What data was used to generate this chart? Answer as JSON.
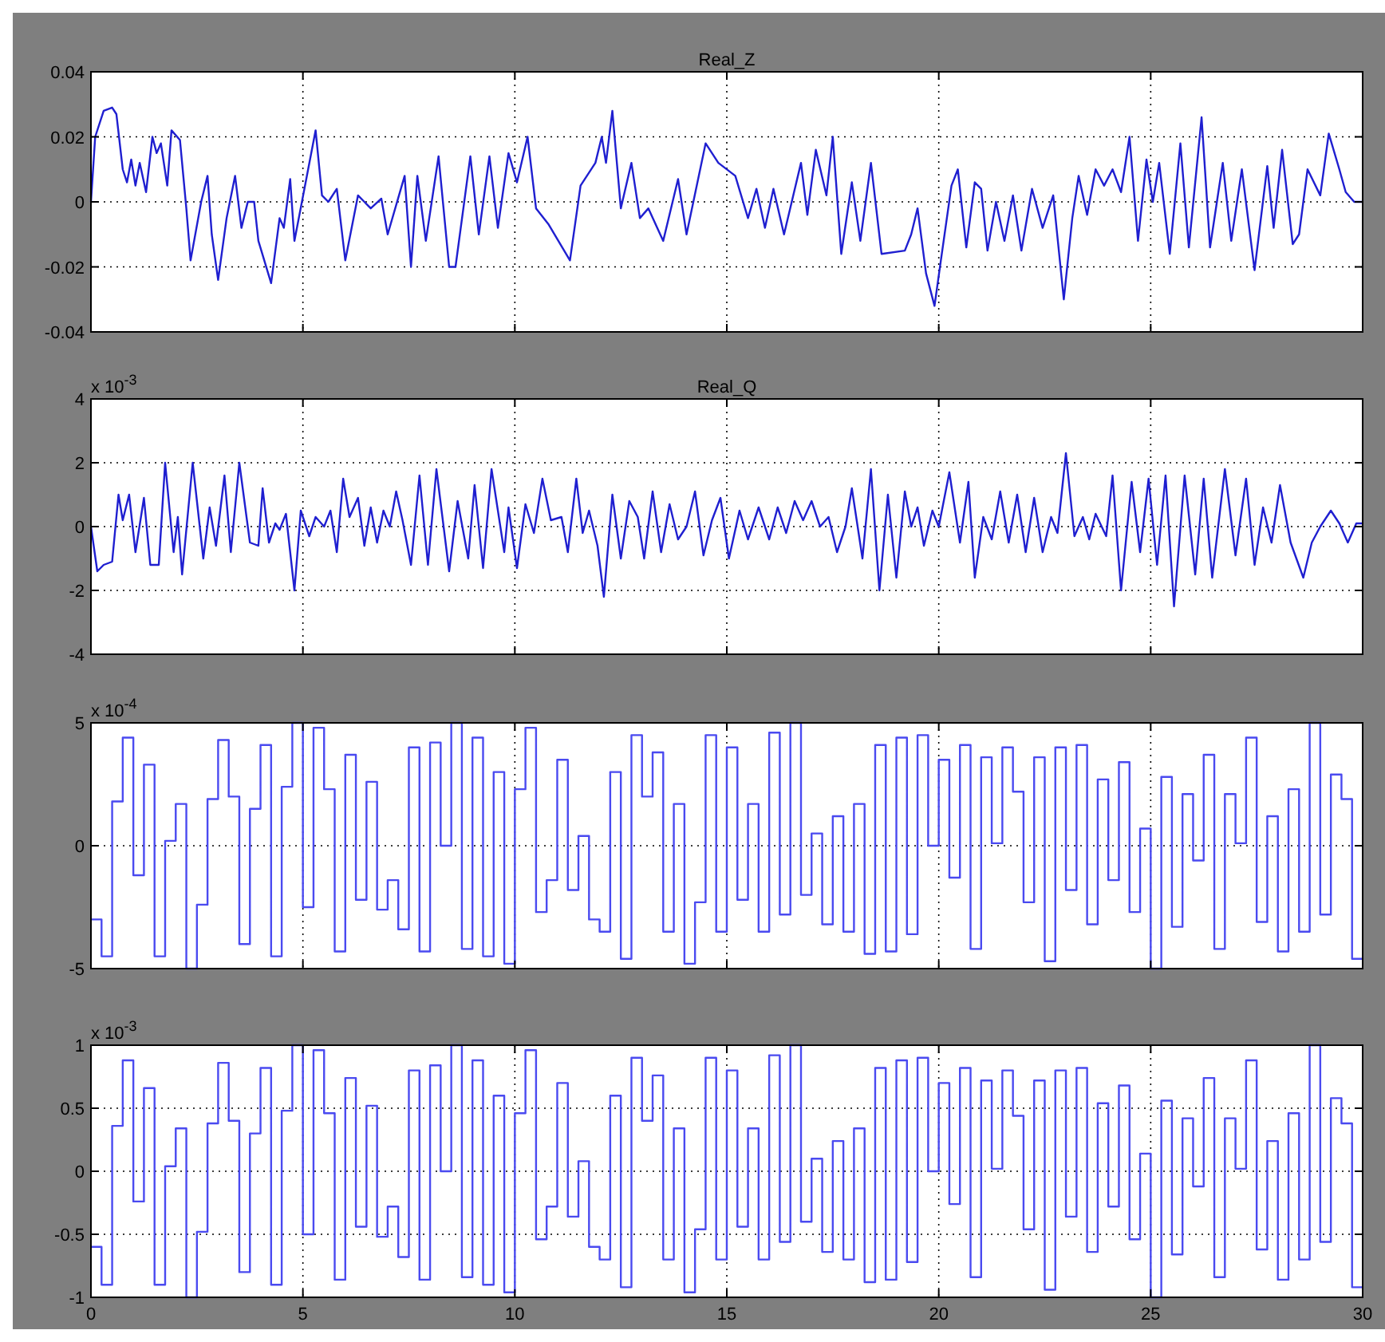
{
  "chart_data": [
    {
      "type": "line",
      "title": "Real_Z",
      "color": "#1f1fd0",
      "xlim": [
        0,
        30
      ],
      "xticks": [
        0,
        5,
        10,
        15,
        20,
        25,
        30
      ],
      "ylim": [
        -0.04,
        0.04
      ],
      "yticks": [
        -0.04,
        -0.02,
        0,
        0.02,
        0.04
      ],
      "grid": true,
      "tick_labels": "y",
      "x": [
        0,
        0.1,
        0.3,
        0.5,
        0.6,
        0.75,
        0.85,
        0.95,
        1.05,
        1.15,
        1.3,
        1.45,
        1.55,
        1.65,
        1.8,
        1.9,
        2.1,
        2.25,
        2.35,
        2.6,
        2.75,
        2.85,
        3.0,
        3.2,
        3.4,
        3.55,
        3.7,
        3.85,
        3.95,
        4.25,
        4.45,
        4.55,
        4.7,
        4.8,
        5.3,
        5.45,
        5.6,
        5.8,
        6.0,
        6.3,
        6.45,
        6.6,
        6.85,
        7.0,
        7.4,
        7.55,
        7.7,
        7.9,
        8.2,
        8.45,
        8.6,
        8.95,
        9.15,
        9.4,
        9.6,
        9.85,
        10.05,
        10.3,
        10.5,
        10.8,
        11.3,
        11.55,
        11.9,
        12.05,
        12.15,
        12.3,
        12.5,
        12.75,
        12.95,
        13.15,
        13.5,
        13.85,
        14.05,
        14.5,
        14.8,
        15.2,
        15.5,
        15.7,
        15.9,
        16.1,
        16.35,
        16.75,
        16.9,
        17.1,
        17.35,
        17.5,
        17.7,
        17.95,
        18.15,
        18.4,
        18.65,
        19.2,
        19.35,
        19.5,
        19.7,
        19.9,
        20.05,
        20.3,
        20.45,
        20.65,
        20.85,
        21.0,
        21.15,
        21.35,
        21.55,
        21.75,
        21.95,
        22.2,
        22.45,
        22.7,
        22.95,
        23.15,
        23.3,
        23.5,
        23.7,
        23.9,
        24.1,
        24.3,
        24.5,
        24.7,
        24.9,
        25.05,
        25.2,
        25.45,
        25.7,
        25.9,
        26.2,
        26.4,
        26.7,
        26.9,
        27.15,
        27.45,
        27.75,
        27.9,
        28.1,
        28.35,
        28.5,
        28.7,
        29.0,
        29.2,
        29.45,
        29.6,
        29.8,
        30
      ],
      "values": [
        0,
        0.02,
        0.028,
        0.029,
        0.027,
        0.01,
        0.006,
        0.013,
        0.005,
        0.012,
        0.003,
        0.02,
        0.015,
        0.018,
        0.005,
        0.022,
        0.019,
        -0.002,
        -0.018,
        0,
        0.008,
        -0.01,
        -0.024,
        -0.005,
        0.008,
        -0.008,
        0,
        0,
        -0.012,
        -0.025,
        -0.005,
        -0.008,
        0.007,
        -0.012,
        0.022,
        0.002,
        0,
        0.004,
        -0.018,
        0.002,
        0,
        -0.002,
        0.001,
        -0.01,
        0.008,
        -0.02,
        0.008,
        -0.012,
        0.014,
        -0.02,
        -0.02,
        0.014,
        -0.01,
        0.014,
        -0.008,
        0.015,
        0.006,
        0.02,
        -0.002,
        -0.007,
        -0.018,
        0.005,
        0.012,
        0.02,
        0.012,
        0.028,
        -0.002,
        0.012,
        -0.005,
        -0.002,
        -0.012,
        0.007,
        -0.01,
        0.018,
        0.012,
        0.008,
        -0.005,
        0.004,
        -0.008,
        0.004,
        -0.01,
        0.012,
        -0.004,
        0.016,
        0.002,
        0.02,
        -0.016,
        0.006,
        -0.012,
        0.012,
        -0.016,
        -0.015,
        -0.01,
        -0.002,
        -0.022,
        -0.032,
        -0.018,
        0.005,
        0.01,
        -0.014,
        0.006,
        0.004,
        -0.015,
        0,
        -0.012,
        0.002,
        -0.015,
        0.004,
        -0.008,
        0.002,
        -0.03,
        -0.005,
        0.008,
        -0.004,
        0.01,
        0.005,
        0.01,
        0.003,
        0.02,
        -0.012,
        0.013,
        0,
        0.012,
        -0.016,
        0.018,
        -0.014,
        0.026,
        -0.014,
        0.012,
        -0.012,
        0.01,
        -0.021,
        0.011,
        -0.008,
        0.016,
        -0.013,
        -0.01,
        0.01,
        0.002,
        0.021,
        0.01,
        0.003,
        0,
        0
      ]
    },
    {
      "type": "line",
      "title": "Real_Q",
      "annotations": [
        "x 10$^{-3}$"
      ],
      "color": "#1f1fd0",
      "xlim": [
        0,
        30
      ],
      "xticks": [
        0,
        5,
        10,
        15,
        20,
        25,
        30
      ],
      "ylim": [
        -4,
        4
      ],
      "yticks": [
        -4,
        -2,
        0,
        2,
        4
      ],
      "grid": true,
      "tick_labels": "y",
      "x": [
        0,
        0.15,
        0.3,
        0.5,
        0.65,
        0.75,
        0.9,
        1.05,
        1.25,
        1.4,
        1.6,
        1.75,
        1.95,
        2.05,
        2.15,
        2.4,
        2.65,
        2.8,
        2.95,
        3.15,
        3.3,
        3.5,
        3.75,
        3.95,
        4.05,
        4.2,
        4.35,
        4.45,
        4.6,
        4.8,
        4.95,
        5.15,
        5.3,
        5.5,
        5.65,
        5.8,
        5.95,
        6.1,
        6.3,
        6.45,
        6.6,
        6.75,
        6.9,
        7.05,
        7.2,
        7.35,
        7.55,
        7.75,
        7.95,
        8.15,
        8.45,
        8.65,
        8.9,
        9.05,
        9.25,
        9.45,
        9.75,
        9.85,
        10.05,
        10.25,
        10.45,
        10.65,
        10.85,
        11.1,
        11.25,
        11.45,
        11.6,
        11.75,
        11.95,
        12.1,
        12.3,
        12.5,
        12.7,
        12.9,
        13.05,
        13.25,
        13.45,
        13.65,
        13.85,
        14.05,
        14.25,
        14.45,
        14.65,
        14.85,
        15.05,
        15.3,
        15.5,
        15.75,
        16.0,
        16.2,
        16.4,
        16.6,
        16.8,
        17.0,
        17.2,
        17.4,
        17.6,
        17.8,
        17.95,
        18.2,
        18.4,
        18.6,
        18.8,
        19.0,
        19.2,
        19.35,
        19.5,
        19.65,
        19.85,
        20.0,
        20.25,
        20.5,
        20.7,
        20.85,
        21.05,
        21.25,
        21.45,
        21.65,
        21.85,
        22.05,
        22.25,
        22.45,
        22.65,
        22.8,
        23.0,
        23.2,
        23.4,
        23.55,
        23.7,
        23.95,
        24.1,
        24.3,
        24.55,
        24.75,
        24.95,
        25.15,
        25.35,
        25.55,
        25.8,
        26.05,
        26.25,
        26.45,
        26.75,
        27.0,
        27.25,
        27.45,
        27.65,
        27.85,
        28.05,
        28.3,
        28.6,
        28.8,
        29.0,
        29.25,
        29.45,
        29.65,
        29.85,
        30
      ],
      "values": [
        0,
        -1.4,
        -1.2,
        -1.1,
        1.0,
        0.2,
        1.0,
        -0.8,
        0.9,
        -1.2,
        -1.2,
        2.0,
        -0.8,
        0.3,
        -1.5,
        2.0,
        -1.0,
        0.6,
        -0.6,
        1.6,
        -0.8,
        2.0,
        -0.5,
        -0.6,
        1.2,
        -0.5,
        0.1,
        -0.1,
        0.4,
        -2.0,
        0.5,
        -0.3,
        0.3,
        0,
        0.5,
        -0.8,
        1.5,
        0.3,
        0.9,
        -0.6,
        0.6,
        -0.5,
        0.5,
        0,
        1.1,
        0.2,
        -1.2,
        1.6,
        -1.2,
        1.8,
        -1.4,
        0.8,
        -1.0,
        1.3,
        -1.3,
        1.8,
        -0.8,
        0.6,
        -1.3,
        0.7,
        -0.2,
        1.5,
        0.2,
        0.3,
        -0.8,
        1.5,
        -0.2,
        0.5,
        -0.6,
        -2.2,
        1.0,
        -1.0,
        0.8,
        0.3,
        -1.0,
        1.1,
        -0.8,
        0.7,
        -0.4,
        0,
        1.1,
        -0.9,
        0.2,
        0.9,
        -1.0,
        0.5,
        -0.4,
        0.6,
        -0.4,
        0.6,
        -0.2,
        0.8,
        0.2,
        0.8,
        0,
        0.3,
        -0.8,
        0,
        1.2,
        -1.0,
        1.8,
        -2.0,
        1.0,
        -1.6,
        1.1,
        0,
        0.6,
        -0.6,
        0.5,
        0,
        1.7,
        -0.5,
        1.4,
        -1.6,
        0.3,
        -0.4,
        1.1,
        -0.5,
        1.0,
        -0.8,
        0.9,
        -0.8,
        0.3,
        -0.2,
        2.3,
        -0.3,
        0.3,
        -0.4,
        0.4,
        -0.3,
        1.6,
        -2.0,
        1.4,
        -0.8,
        1.5,
        -1.2,
        1.6,
        -2.5,
        1.6,
        -1.5,
        1.5,
        -1.6,
        1.8,
        -0.9,
        1.5,
        -1.2,
        0.6,
        -0.5,
        1.3,
        -0.5,
        -1.6,
        -0.5,
        0,
        0.5,
        0.1,
        -0.5,
        0.1,
        0.1
      ]
    },
    {
      "type": "step",
      "annotations": [
        "x 10$^{-4}$"
      ],
      "color": "#4a4af0",
      "xlim": [
        0,
        30
      ],
      "xticks": [
        0,
        5,
        10,
        15,
        20,
        25,
        30
      ],
      "ylim": [
        -5,
        5
      ],
      "yticks": [
        -5,
        0,
        5
      ],
      "grid": true,
      "tick_labels": "y",
      "x": [
        0,
        0.25,
        0.5,
        0.75,
        1,
        1.25,
        1.5,
        1.75,
        2,
        2.25,
        2.5,
        2.75,
        3,
        3.25,
        3.5,
        3.75,
        4,
        4.25,
        4.5,
        4.75,
        5,
        5.25,
        5.5,
        5.75,
        6,
        6.25,
        6.5,
        6.75,
        7,
        7.25,
        7.5,
        7.75,
        8,
        8.25,
        8.5,
        8.75,
        9,
        9.25,
        9.5,
        9.75,
        10,
        10.25,
        10.5,
        10.75,
        11,
        11.25,
        11.5,
        11.75,
        12,
        12.25,
        12.5,
        12.75,
        13,
        13.25,
        13.5,
        13.75,
        14,
        14.25,
        14.5,
        14.75,
        15,
        15.25,
        15.5,
        15.75,
        16,
        16.25,
        16.5,
        16.75,
        17,
        17.25,
        17.5,
        17.75,
        18,
        18.25,
        18.5,
        18.75,
        19,
        19.25,
        19.5,
        19.75,
        20,
        20.25,
        20.5,
        20.75,
        21,
        21.25,
        21.5,
        21.75,
        22,
        22.25,
        22.5,
        22.75,
        23,
        23.25,
        23.5,
        23.75,
        24,
        24.25,
        24.5,
        24.75,
        25,
        25.25,
        25.5,
        25.75,
        26,
        26.25,
        26.5,
        26.75,
        27,
        27.25,
        27.5,
        27.75,
        28,
        28.25,
        28.5,
        28.75,
        29,
        29.25,
        29.5,
        29.75,
        30
      ],
      "values": [
        -3,
        -4.5,
        1.8,
        4.4,
        -1.2,
        3.3,
        -4.5,
        0.2,
        1.7,
        -5,
        -2.4,
        1.9,
        4.3,
        2,
        -4,
        1.5,
        4.1,
        -4.5,
        2.4,
        5,
        -2.5,
        4.8,
        2.3,
        -4.3,
        3.7,
        -2.2,
        2.6,
        -2.6,
        -1.4,
        -3.4,
        4,
        -4.3,
        4.2,
        0,
        5,
        -4.2,
        4.4,
        -4.5,
        3,
        -4.8,
        2.3,
        4.8,
        -2.7,
        -1.4,
        3.5,
        -1.8,
        0.4,
        -3,
        -3.5,
        3,
        -4.6,
        4.5,
        2,
        3.8,
        -3.5,
        1.7,
        -4.8,
        -2.3,
        4.5,
        -3.5,
        4,
        -2.2,
        1.7,
        -3.5,
        4.6,
        -2.8,
        5,
        -2,
        0.5,
        -3.2,
        1.2,
        -3.5,
        1.7,
        -4.4,
        4.1,
        -4.3,
        4.4,
        -3.6,
        4.5,
        0,
        3.5,
        -1.3,
        4.1,
        -4.2,
        3.6,
        0.1,
        4,
        2.2,
        -2.3,
        3.6,
        -4.7,
        4,
        -1.8,
        4.1,
        -3.2,
        2.7,
        -1.4,
        3.4,
        -2.7,
        0.7,
        -5,
        2.8,
        -3.3,
        2.1,
        -0.6,
        3.7,
        -4.2,
        2.1,
        0.1,
        4.4,
        -3.1,
        1.2,
        -4.3,
        2.3,
        -3.5,
        5,
        -2.8,
        2.9,
        1.9,
        -4.6,
        -4.6
      ]
    },
    {
      "type": "step",
      "annotations": [
        "x 10$^{-3}$"
      ],
      "color": "#4a4af0",
      "xlim": [
        0,
        30
      ],
      "xticks": [
        0,
        5,
        10,
        15,
        20,
        25,
        30
      ],
      "ylim": [
        -1,
        1
      ],
      "yticks": [
        -1,
        -0.5,
        0,
        0.5,
        1
      ],
      "grid": true,
      "x": [
        0,
        0.25,
        0.5,
        0.75,
        1,
        1.25,
        1.5,
        1.75,
        2,
        2.25,
        2.5,
        2.75,
        3,
        3.25,
        3.5,
        3.75,
        4,
        4.25,
        4.5,
        4.75,
        5,
        5.25,
        5.5,
        5.75,
        6,
        6.25,
        6.5,
        6.75,
        7,
        7.25,
        7.5,
        7.75,
        8,
        8.25,
        8.5,
        8.75,
        9,
        9.25,
        9.5,
        9.75,
        10,
        10.25,
        10.5,
        10.75,
        11,
        11.25,
        11.5,
        11.75,
        12,
        12.25,
        12.5,
        12.75,
        13,
        13.25,
        13.5,
        13.75,
        14,
        14.25,
        14.5,
        14.75,
        15,
        15.25,
        15.5,
        15.75,
        16,
        16.25,
        16.5,
        16.75,
        17,
        17.25,
        17.5,
        17.75,
        18,
        18.25,
        18.5,
        18.75,
        19,
        19.25,
        19.5,
        19.75,
        20,
        20.25,
        20.5,
        20.75,
        21,
        21.25,
        21.5,
        21.75,
        22,
        22.25,
        22.5,
        22.75,
        23,
        23.25,
        23.5,
        23.75,
        24,
        24.25,
        24.5,
        24.75,
        25,
        25.25,
        25.5,
        25.75,
        26,
        26.25,
        26.5,
        26.75,
        27,
        27.25,
        27.5,
        27.75,
        28,
        28.25,
        28.5,
        28.75,
        29,
        29.25,
        29.5,
        29.75,
        30
      ],
      "values": [
        -0.6,
        -0.9,
        0.36,
        0.88,
        -0.24,
        0.66,
        -0.9,
        0.04,
        0.34,
        -1,
        -0.48,
        0.38,
        0.86,
        0.4,
        -0.8,
        0.3,
        0.82,
        -0.9,
        0.48,
        1,
        -0.5,
        0.96,
        0.46,
        -0.86,
        0.74,
        -0.44,
        0.52,
        -0.52,
        -0.28,
        -0.68,
        0.8,
        -0.86,
        0.84,
        0,
        1,
        -0.84,
        0.88,
        -0.9,
        0.6,
        -0.96,
        0.46,
        0.96,
        -0.54,
        -0.28,
        0.7,
        -0.36,
        0.08,
        -0.6,
        -0.7,
        0.6,
        -0.92,
        0.9,
        0.4,
        0.76,
        -0.7,
        0.34,
        -0.96,
        -0.46,
        0.9,
        -0.7,
        0.8,
        -0.44,
        0.34,
        -0.7,
        0.92,
        -0.56,
        1,
        -0.4,
        0.1,
        -0.64,
        0.24,
        -0.7,
        0.34,
        -0.88,
        0.82,
        -0.86,
        0.88,
        -0.72,
        0.9,
        0,
        0.7,
        -0.26,
        0.82,
        -0.84,
        0.72,
        0.02,
        0.8,
        0.44,
        -0.46,
        0.72,
        -0.94,
        0.8,
        -0.36,
        0.82,
        -0.64,
        0.54,
        -0.28,
        0.68,
        -0.54,
        0.14,
        -1,
        0.56,
        -0.66,
        0.42,
        -0.12,
        0.74,
        -0.84,
        0.42,
        0.02,
        0.88,
        -0.62,
        0.24,
        -0.86,
        0.46,
        -0.7,
        1,
        -0.56,
        0.58,
        0.38,
        -0.92,
        -0.92
      ]
    }
  ]
}
